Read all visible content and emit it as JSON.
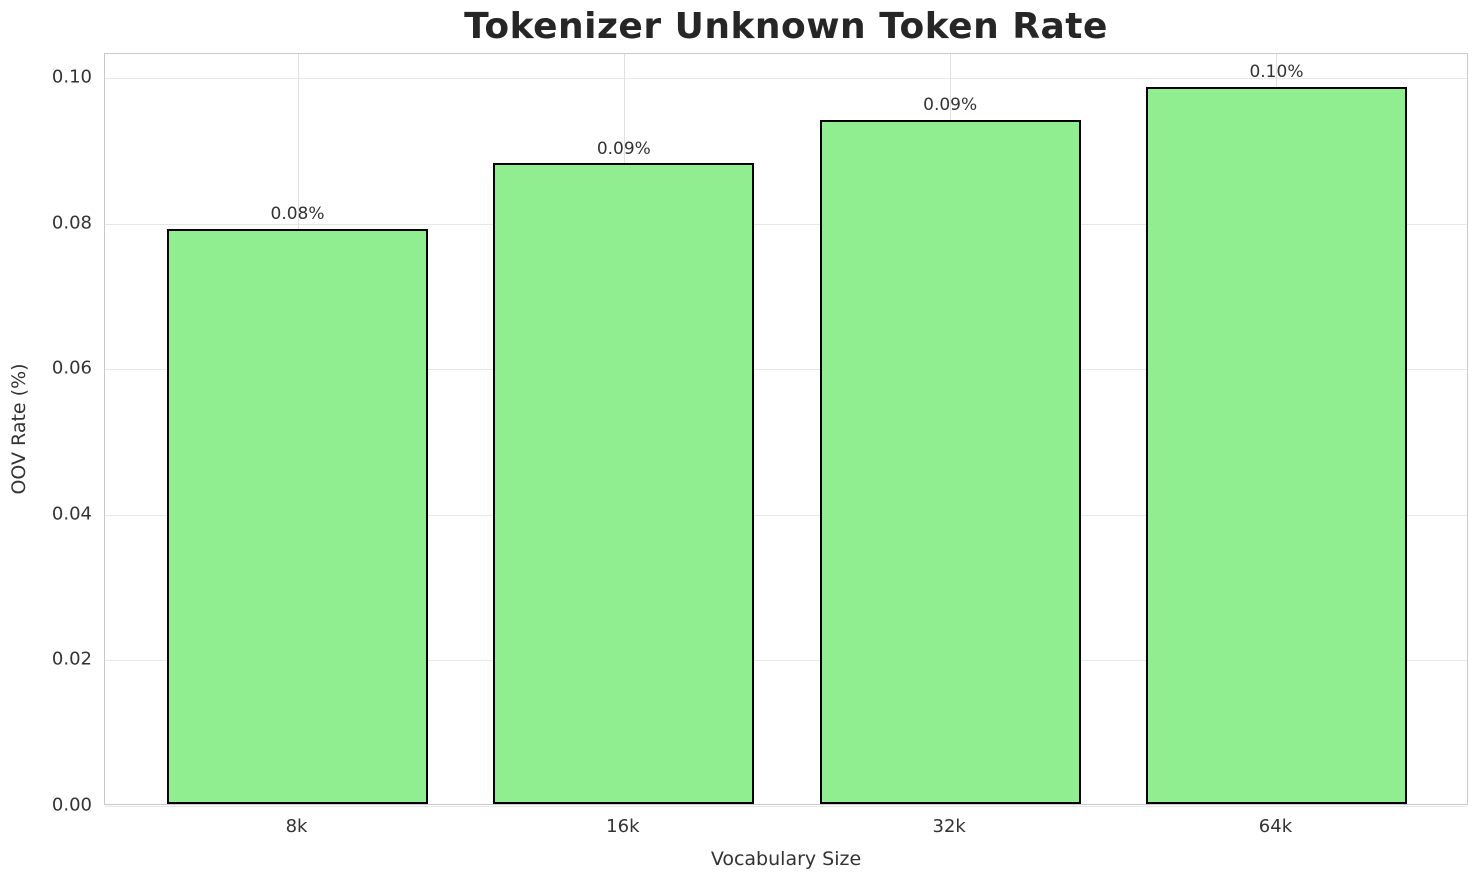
{
  "chart_data": {
    "type": "bar",
    "title": "Tokenizer Unknown Token Rate",
    "xlabel": "Vocabulary Size",
    "ylabel": "OOV Rate (%)",
    "categories": [
      "8k",
      "16k",
      "32k",
      "64k"
    ],
    "values": [
      0.079,
      0.088,
      0.094,
      0.0985
    ],
    "bar_labels": [
      "0.08%",
      "0.09%",
      "0.09%",
      "0.10%"
    ],
    "yticks": {
      "values": [
        0.0,
        0.02,
        0.04,
        0.06,
        0.08,
        0.1
      ],
      "labels": [
        "0.00",
        "0.02",
        "0.04",
        "0.06",
        "0.08",
        "0.10"
      ]
    },
    "ylim": [
      0,
      0.1033
    ],
    "grid": true,
    "legend": null,
    "colors": {
      "bar_fill": "#90EE90",
      "bar_edge": "#000000",
      "grid_h": "#e7e7e7",
      "grid_v": "#e0e0e0",
      "spine": "#c9c9c9",
      "text": "#333333",
      "title": "#262626",
      "background": "#ffffff"
    }
  }
}
